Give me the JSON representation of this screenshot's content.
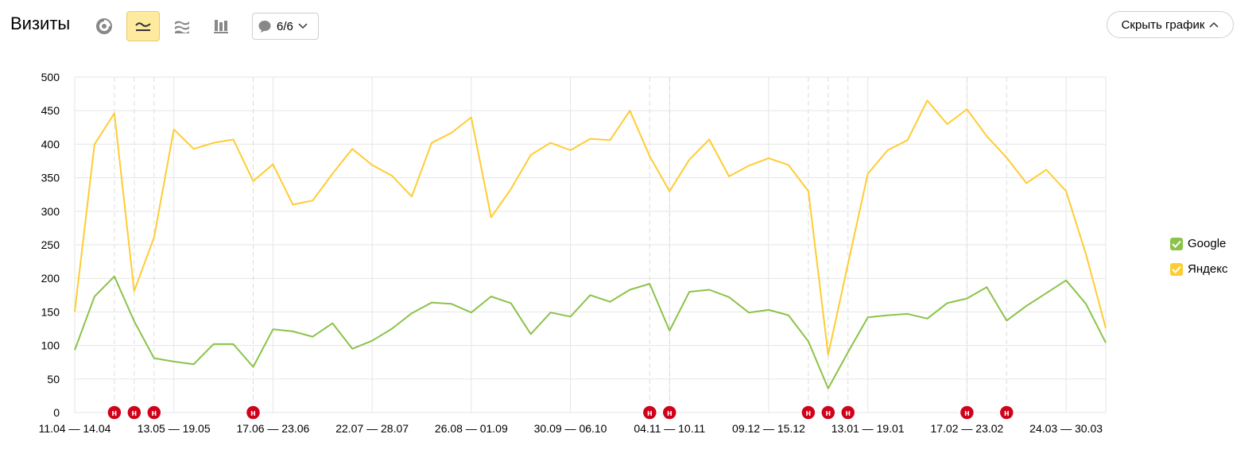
{
  "toolbar": {
    "title": "Визиты",
    "notes_label": "6/6",
    "hide_label": "Скрыть график",
    "buttons": [
      {
        "icon": "pie-chart-icon",
        "active": false
      },
      {
        "icon": "line-chart-icon",
        "active": true
      },
      {
        "icon": "area-stack-icon",
        "active": false
      },
      {
        "icon": "bar-chart-icon",
        "active": false
      }
    ]
  },
  "chart_data": {
    "type": "line",
    "ylim": [
      0,
      500
    ],
    "yticks": [
      0,
      50,
      100,
      150,
      200,
      250,
      300,
      350,
      400,
      450,
      500
    ],
    "xtick_labels": [
      "11.04 — 14.04",
      "13.05 — 19.05",
      "17.06 — 23.06",
      "22.07 — 28.07",
      "26.08 — 01.09",
      "30.09 — 06.10",
      "04.11 — 10.11",
      "09.12 — 15.12",
      "13.01 — 19.01",
      "17.02 — 23.02",
      "24.03 — 30.03"
    ],
    "grid": true,
    "legend_position": "right",
    "series": [
      {
        "name": "Google",
        "color": "#8bc34a",
        "values": [
          93,
          173,
          203,
          136,
          81,
          76,
          72,
          102,
          102,
          68,
          124,
          121,
          113,
          133,
          95,
          107,
          125,
          148,
          164,
          162,
          149,
          173,
          163,
          117,
          149,
          143,
          175,
          165,
          183,
          192,
          122,
          180,
          183,
          172,
          149,
          153,
          145,
          106,
          36,
          90,
          142,
          145,
          147,
          140,
          163,
          170,
          187,
          137,
          159,
          178,
          197,
          162,
          104
        ]
      },
      {
        "name": "Яндекс",
        "color": "#ffcc33",
        "values": [
          150,
          400,
          446,
          181,
          261,
          422,
          393,
          402,
          407,
          345,
          370,
          310,
          316,
          356,
          393,
          369,
          353,
          322,
          402,
          417,
          440,
          291,
          333,
          384,
          402,
          391,
          408,
          406,
          450,
          382,
          330,
          377,
          407,
          352,
          368,
          379,
          369,
          330,
          86,
          222,
          356,
          391,
          406,
          465,
          430,
          452,
          412,
          380,
          342,
          362,
          330,
          236,
          126
        ]
      }
    ],
    "annotation_markers": [
      {
        "index": 2,
        "label": "н"
      },
      {
        "index": 3,
        "label": "н"
      },
      {
        "index": 4,
        "label": "н"
      },
      {
        "index": 9,
        "label": "н"
      },
      {
        "index": 29,
        "label": "н"
      },
      {
        "index": 30,
        "label": "н"
      },
      {
        "index": 37,
        "label": "н"
      },
      {
        "index": 38,
        "label": "н"
      },
      {
        "index": 39,
        "label": "н"
      },
      {
        "index": 45,
        "label": "н"
      },
      {
        "index": 47,
        "label": "н"
      }
    ]
  }
}
